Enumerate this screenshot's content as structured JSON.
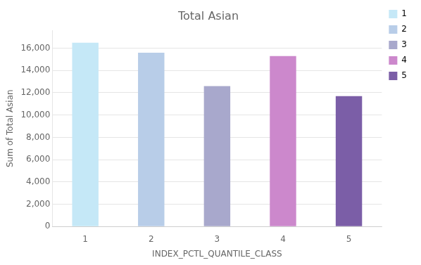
{
  "chart_data": {
    "type": "bar",
    "title": "Total Asian",
    "xlabel": "INDEX_PCTL_QUANTILE_CLASS",
    "ylabel": "Sum of Total Asian",
    "categories": [
      "1",
      "2",
      "3",
      "4",
      "5"
    ],
    "values": [
      16500,
      15600,
      12600,
      15300,
      11700
    ],
    "colors": [
      "#c5e8f7",
      "#b8cde8",
      "#a8a8cc",
      "#cc88cc",
      "#7b5ea7"
    ],
    "ylim": [
      0,
      17600
    ],
    "yticks": [
      0,
      {
        "value": 2000,
        "label": "2,000"
      },
      {
        "value": 4000,
        "label": "4,000"
      },
      {
        "value": 6000,
        "label": "6,000"
      },
      {
        "value": 8000,
        "label": "8,000"
      },
      {
        "value": 10000,
        "label": "10,000"
      },
      {
        "value": 12000,
        "label": "12,000"
      },
      {
        "value": 14000,
        "label": "14,000"
      },
      {
        "value": 16000,
        "label": "16,000"
      }
    ],
    "grid": true,
    "legend": "right"
  }
}
